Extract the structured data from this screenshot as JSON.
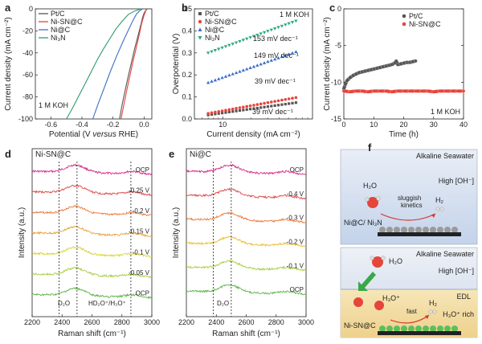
{
  "chart_data": [
    {
      "panel": "a",
      "type": "line",
      "xlabel_parts": [
        "Potential (V ",
        "versus",
        " RHE)"
      ],
      "ylabel": "Current density (mA cm⁻²)",
      "xlim": [
        -0.7,
        0.05
      ],
      "ylim": [
        -100,
        0
      ],
      "xticks": [
        -0.6,
        -0.4,
        -0.2,
        0.0
      ],
      "xtick_labels": [
        "-0.6",
        "-0.4",
        "-0.2",
        "0.0"
      ],
      "yticks": [
        -100,
        -80,
        -60,
        -40,
        -20,
        0
      ],
      "ytick_labels": [
        "-100",
        "-80",
        "-60",
        "-40",
        "-20",
        "0"
      ],
      "annotation": "1 M KOH",
      "legend": "top-left",
      "series": [
        {
          "name": "Pt/C",
          "color": "#555555",
          "x": [
            -0.158,
            -0.14,
            -0.12,
            -0.1,
            -0.08,
            -0.06,
            -0.04,
            -0.02,
            -0.01,
            0.0,
            0.01,
            0.02
          ],
          "y": [
            -100,
            -86,
            -73,
            -60,
            -48,
            -36,
            -25,
            -14,
            -8,
            -4,
            -1.5,
            0
          ]
        },
        {
          "name": "Ni-SN@C",
          "color": "#e8443a",
          "x": [
            -0.148,
            -0.13,
            -0.11,
            -0.09,
            -0.07,
            -0.05,
            -0.03,
            -0.015,
            0.0,
            0.01,
            0.02
          ],
          "y": [
            -100,
            -87,
            -73,
            -60,
            -47,
            -35,
            -23,
            -13,
            -6,
            -2,
            0
          ]
        },
        {
          "name": "Ni@C",
          "color": "#3f6fc4",
          "x": [
            -0.33,
            -0.3,
            -0.26,
            -0.22,
            -0.18,
            -0.14,
            -0.1,
            -0.07,
            -0.05,
            -0.03,
            -0.01
          ],
          "y": [
            -100,
            -88,
            -73,
            -58,
            -44,
            -31,
            -19,
            -10,
            -5,
            -2,
            0
          ]
        },
        {
          "name": "Ni₃N",
          "color": "#2e9a6a",
          "x": [
            -0.5,
            -0.46,
            -0.42,
            -0.38,
            -0.34,
            -0.3,
            -0.26,
            -0.22,
            -0.18,
            -0.14,
            -0.1,
            -0.06,
            -0.02
          ],
          "y": [
            -100,
            -90,
            -79,
            -68,
            -57,
            -46,
            -36,
            -27,
            -18,
            -11,
            -5,
            -2,
            0
          ]
        }
      ]
    },
    {
      "panel": "b",
      "type": "scatter",
      "xlabel": "Current density (mA cm⁻²)",
      "ylabel": "Overpotential (V)",
      "xscale": "log",
      "xlim": [
        5,
        90
      ],
      "ylim": [
        0,
        0.5
      ],
      "xticks": [
        10
      ],
      "xtick_labels": [
        "10"
      ],
      "yticks": [
        0.0,
        0.1,
        0.2,
        0.3,
        0.4,
        0.5
      ],
      "ytick_labels": [
        "0.0",
        "0.1",
        "0.2",
        "0.3",
        "0.4",
        "0.5"
      ],
      "annotation": "1 M KOH",
      "legend": "top-left",
      "series": [
        {
          "name": "Pt/C",
          "color": "#555555",
          "marker": "square",
          "slope_label": "39 mV dec⁻¹",
          "x_start": 7,
          "x_end": 60,
          "y_start": 0.018,
          "y_end": 0.074
        },
        {
          "name": "Ni-SN@C",
          "color": "#e8443a",
          "marker": "circle",
          "slope_label": "39 mV dec⁻¹",
          "x_start": 7,
          "x_end": 60,
          "y_start": 0.025,
          "y_end": 0.097
        },
        {
          "name": "Ni@C",
          "color": "#3f6fc4",
          "marker": "triangle",
          "slope_label": "149 mV dec⁻¹",
          "x_start": 7,
          "x_end": 60,
          "y_start": 0.165,
          "y_end": 0.305
        },
        {
          "name": "Ni₃N",
          "color": "#2eab7a",
          "marker": "triangle-down",
          "slope_label": "153 mV dec⁻¹",
          "x_start": 7,
          "x_end": 60,
          "y_start": 0.3,
          "y_end": 0.445
        }
      ]
    },
    {
      "panel": "c",
      "type": "scatter",
      "xlabel": "Time (h)",
      "ylabel": "Current density (mA cm⁻²)",
      "xlim": [
        0,
        40
      ],
      "ylim": [
        -15,
        0
      ],
      "xticks": [
        0,
        10,
        20,
        30,
        40
      ],
      "xtick_labels": [
        "0",
        "10",
        "20",
        "30",
        "40"
      ],
      "yticks": [
        -15,
        -10,
        -5,
        0
      ],
      "ytick_labels": [
        "-15",
        "-10",
        "-5",
        "0"
      ],
      "annotation": "1 M KOH",
      "legend": "top-right",
      "series": [
        {
          "name": "Pt/C",
          "color": "#555555",
          "x": [
            0,
            0.5,
            1,
            2,
            3,
            4,
            5,
            6,
            7,
            8,
            9,
            10,
            11,
            12,
            13,
            14,
            15,
            16,
            17,
            17.5,
            18,
            19,
            20,
            21,
            22,
            23,
            24
          ],
          "y": [
            -10.9,
            -10.3,
            -9.8,
            -9.4,
            -9.1,
            -8.9,
            -8.7,
            -8.6,
            -8.5,
            -8.4,
            -8.3,
            -8.2,
            -8.1,
            -8.0,
            -7.9,
            -7.8,
            -7.7,
            -7.6,
            -7.4,
            -7.1,
            -7.6,
            -7.5,
            -7.4,
            -7.3,
            -7.3,
            -7.2,
            -7.1
          ]
        },
        {
          "name": "Ni-SN@C",
          "color": "#e8443a",
          "x": [
            0,
            2,
            4,
            6,
            8,
            10,
            12,
            14,
            16,
            18,
            20,
            22,
            24,
            26,
            28,
            30,
            32,
            34,
            36,
            38,
            40
          ],
          "y": [
            -11.2,
            -11.3,
            -11.2,
            -11.2,
            -11.3,
            -11.2,
            -11.2,
            -11.2,
            -11.3,
            -11.2,
            -11.2,
            -11.2,
            -11.2,
            -11.2,
            -11.2,
            -11.3,
            -11.2,
            -11.2,
            -11.2,
            -11.2,
            -11.2
          ]
        }
      ]
    },
    {
      "panel": "d",
      "type": "line",
      "xlabel": "Raman shift (cm⁻¹)",
      "ylabel": "Intensity (a.u.)",
      "xlim": [
        2200,
        3000
      ],
      "xticks": [
        2200,
        2400,
        2600,
        2800,
        3000
      ],
      "xtick_labels": [
        "2200",
        "2400",
        "2600",
        "2800",
        "3000"
      ],
      "sample_label": "Ni-SN@C",
      "vlines": [
        2380,
        2500,
        2860
      ],
      "annotations": [
        "D₂O",
        "HD₂O⁺/H₃O⁺"
      ],
      "traces": [
        {
          "label": "OCP",
          "color": "#d92b8b"
        },
        {
          "label": "-0.25 V",
          "color": "#e04747"
        },
        {
          "label": "-0.2 V",
          "color": "#ea7a3a"
        },
        {
          "label": "-0.15 V",
          "color": "#e8a53a"
        },
        {
          "label": "-0.1 V",
          "color": "#d9d43c"
        },
        {
          "label": "-0.05 V",
          "color": "#a8cc3f"
        },
        {
          "label": "OCP",
          "color": "#62b54a"
        }
      ]
    },
    {
      "panel": "e",
      "type": "line",
      "xlabel": "Raman shift (cm⁻¹)",
      "ylabel": "Intensity (a.u.)",
      "xlim": [
        2200,
        3000
      ],
      "xticks": [
        2200,
        2400,
        2600,
        2800,
        3000
      ],
      "xtick_labels": [
        "2200",
        "2400",
        "2600",
        "2800",
        "3000"
      ],
      "sample_label": "Ni@C",
      "vlines": [
        2380,
        2500
      ],
      "annotations": [
        "D₂O"
      ],
      "traces": [
        {
          "label": "OCP",
          "color": "#d92b8b"
        },
        {
          "label": "-0.4 V",
          "color": "#e04747"
        },
        {
          "label": "-0.3 V",
          "color": "#ea7a3a"
        },
        {
          "label": "-0.2 V",
          "color": "#e8c03a"
        },
        {
          "label": "-0.1 V",
          "color": "#a8cc3f"
        },
        {
          "label": "OCP",
          "color": "#62b54a"
        }
      ]
    }
  ],
  "panel_f": {
    "top": {
      "title": "Alkaline Seawater",
      "oh": "High [OH⁻]",
      "h2o": "H₂O",
      "kinetics1": "sluggish",
      "kinetics2": "kinetics",
      "h2": "H₂",
      "catalyst": "Ni@C/ Ni₃N"
    },
    "bottom": {
      "title": "Alkaline Seawater",
      "oh": "High [OH⁻]",
      "h2o": "H₂O",
      "edl": "EDL",
      "h3o": "H₃O⁺",
      "fast": "fast",
      "h2": "H₂",
      "rich": "H₃O⁺ rich",
      "catalyst": "Ni-SN@C"
    }
  },
  "panel_letters": [
    "a",
    "b",
    "c",
    "d",
    "e",
    "f"
  ]
}
